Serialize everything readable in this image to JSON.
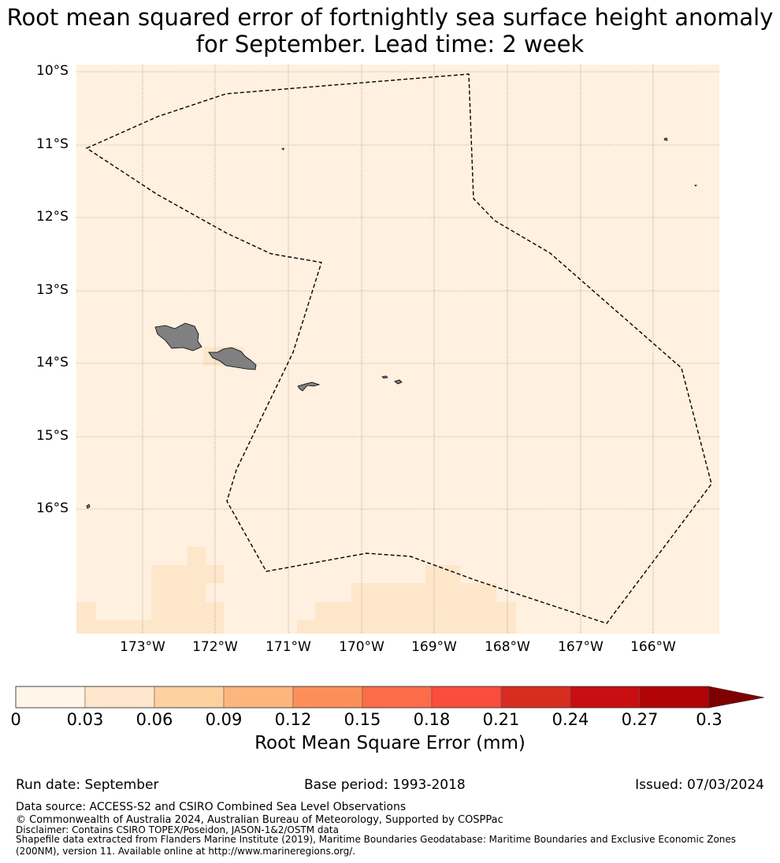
{
  "title": {
    "line1": "Root mean squared error of fortnightly sea surface height anomaly",
    "line2": "for September. Lead time: 2 week"
  },
  "map": {
    "lat_labels": [
      "10°S",
      "11°S",
      "12°S",
      "13°S",
      "14°S",
      "15°S",
      "16°S"
    ],
    "lon_labels": [
      "173°W",
      "172°W",
      "171°W",
      "170°W",
      "169°W",
      "168°W",
      "167°W",
      "166°W"
    ],
    "colors": {
      "ocean_low": "#fff0df",
      "ocean_mid": "#fee6cb",
      "land": "#808080",
      "boundary": "#000000",
      "grid": "#6e6e6e"
    }
  },
  "colorbar": {
    "ticks": [
      "0",
      "0.03",
      "0.06",
      "0.09",
      "0.12",
      "0.15",
      "0.18",
      "0.21",
      "0.24",
      "0.27",
      "0.3"
    ],
    "colors": [
      "#fff5e8",
      "#fee6cc",
      "#fdd19e",
      "#fdb57e",
      "#fc8f57",
      "#fc6c48",
      "#fb4d3b",
      "#d62d20",
      "#c90e12",
      "#b00408",
      "#7f0000"
    ],
    "label": "Root Mean Square Error (mm)"
  },
  "footer": {
    "run_date": "Run date: September",
    "base_period": "Base period: 1993-2018",
    "issued": "Issued: 07/03/2024",
    "data_source": "Data source: ACCESS-S2 and CSIRO Combined Sea Level Observations",
    "copyright": "© Commonwealth of Australia 2024, Australian Bureau of Meteorology, Supported by COSPPac",
    "disclaimer": "Disclaimer: Contains CSIRO TOPEX/Poseidon, JASON-1&2/OSTM data",
    "shapefile_1": "Shapefile data extracted from Flanders Marine Institute (2019), Maritime Boundaries Geodatabase: Maritime Boundaries and Exclusive Economic Zones",
    "shapefile_2": "(200NM), version 11. Available online at http://www.marineregions.org/."
  }
}
